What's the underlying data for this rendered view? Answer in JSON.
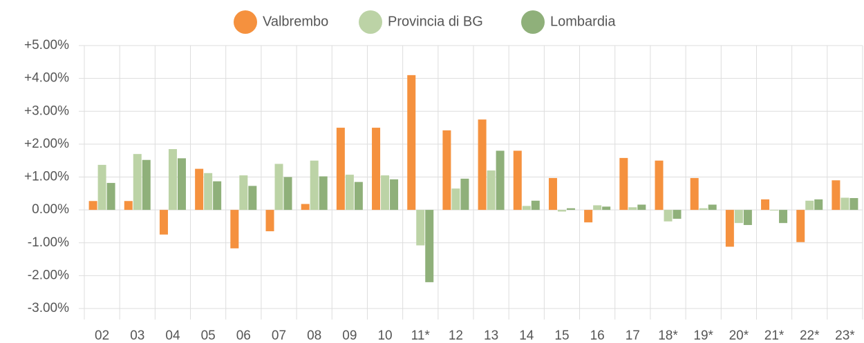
{
  "chart_data": {
    "type": "bar",
    "categories": [
      "02",
      "03",
      "04",
      "05",
      "06",
      "07",
      "08",
      "09",
      "10",
      "11*",
      "12",
      "13",
      "14",
      "15",
      "16",
      "17",
      "18*",
      "19*",
      "20*",
      "21*",
      "22*",
      "23*"
    ],
    "series": [
      {
        "name": "Valbrembo",
        "color": "#f5913e",
        "values": [
          0.27,
          0.27,
          -0.75,
          1.25,
          -1.17,
          -0.65,
          0.18,
          2.5,
          2.5,
          4.1,
          2.42,
          2.75,
          1.8,
          0.97,
          -0.38,
          1.58,
          1.5,
          0.97,
          -1.12,
          0.32,
          -0.98,
          0.9
        ]
      },
      {
        "name": "Provincia di BG",
        "color": "#bcd3a6",
        "values": [
          1.37,
          1.7,
          1.85,
          1.12,
          1.05,
          1.4,
          1.5,
          1.07,
          1.05,
          -1.08,
          0.65,
          1.2,
          0.12,
          -0.05,
          0.14,
          0.08,
          -0.35,
          0.05,
          -0.4,
          -0.02,
          0.28,
          0.37
        ]
      },
      {
        "name": "Lombardia",
        "color": "#8fb07a",
        "values": [
          0.82,
          1.52,
          1.57,
          0.87,
          0.73,
          1.0,
          1.02,
          0.85,
          0.93,
          -2.2,
          0.95,
          1.8,
          0.28,
          0.05,
          0.1,
          0.16,
          -0.27,
          0.16,
          -0.46,
          -0.4,
          0.32,
          0.36
        ]
      }
    ],
    "ylim": [
      -3,
      5
    ],
    "yticks": [
      {
        "value": -3,
        "label": "-3.00%"
      },
      {
        "value": -2,
        "label": "-2.00%"
      },
      {
        "value": -1,
        "label": "-1.00%"
      },
      {
        "value": 0,
        "label": "0.00%"
      },
      {
        "value": 1,
        "label": "+1.00%"
      },
      {
        "value": 2,
        "label": "+2.00%"
      },
      {
        "value": 3,
        "label": "+3.00%"
      },
      {
        "value": 4,
        "label": "+4.00%"
      },
      {
        "value": 5,
        "label": "+5.00%"
      }
    ],
    "grid": true,
    "legend": "top"
  }
}
